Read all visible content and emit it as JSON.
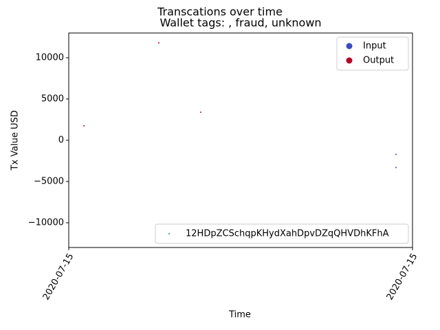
{
  "chart_data": {
    "type": "scatter",
    "title": "Transcations over time",
    "subtitle": "Wallet tags: , fraud, unknown",
    "x_label": "Time",
    "y_label": "Tx Value USD",
    "xlim": [
      0,
      1
    ],
    "xticks": [
      {
        "value": 0,
        "label": "2020-07-15"
      },
      {
        "value": 1,
        "label": "2020-07-15"
      }
    ],
    "ylim": [
      -13000,
      13000
    ],
    "yticks": [
      {
        "value": -10000,
        "label": "−10000"
      },
      {
        "value": -5000,
        "label": "−5000"
      },
      0,
      5000,
      10000
    ],
    "legend_loc": "upper right",
    "series": [
      {
        "name": "Input",
        "color": "#3b4cc0",
        "x": [
          0.952,
          0.952
        ],
        "values": [
          -1700,
          -3300
        ]
      },
      {
        "name": "Output",
        "color": "#b40426",
        "x": [
          0.044,
          0.262,
          0.384
        ],
        "values": [
          1750,
          11800,
          3400
        ]
      }
    ],
    "wallet_legend": {
      "name": "12HDpZCSchqpKHydXahDpvDZqQHVDhKFhA",
      "color": "#21918c",
      "legend_loc": "lower right"
    }
  }
}
